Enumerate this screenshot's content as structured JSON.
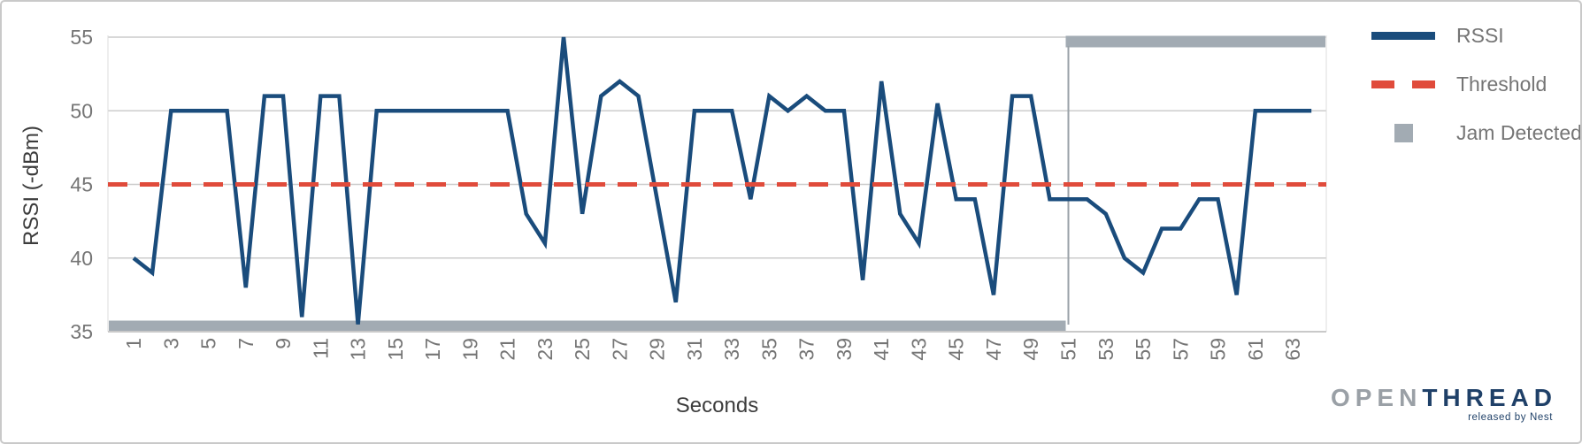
{
  "chart_data": {
    "type": "line",
    "title": "",
    "xlabel": "Seconds",
    "ylabel": "RSSI (-dBm)",
    "x_range": [
      1,
      64
    ],
    "ylim": [
      35,
      55
    ],
    "y_ticks": [
      35,
      40,
      45,
      50,
      55
    ],
    "x_tick_labels": [
      1,
      3,
      5,
      7,
      9,
      11,
      13,
      15,
      17,
      19,
      21,
      23,
      25,
      27,
      29,
      31,
      33,
      35,
      37,
      39,
      41,
      43,
      45,
      47,
      49,
      51,
      53,
      55,
      57,
      59,
      61,
      63
    ],
    "grid": true,
    "legend": {
      "position": "right",
      "items": [
        "RSSI",
        "Threshold",
        "Jam Detected"
      ]
    },
    "series": [
      {
        "name": "RSSI",
        "type": "line",
        "color": "#1a4c7c",
        "x_start": 1,
        "values": [
          40,
          39,
          50,
          50,
          50,
          50,
          38,
          51,
          51,
          36,
          51,
          51,
          35.5,
          50,
          50,
          50,
          50,
          50,
          50,
          50,
          50,
          43,
          41,
          55,
          43,
          51,
          52,
          51,
          44,
          37,
          50,
          50,
          50,
          44,
          51,
          50,
          51,
          50,
          50,
          38.5,
          52,
          43,
          41,
          50.5,
          44,
          44,
          37.5,
          51,
          51,
          44,
          44,
          44,
          43,
          40,
          39,
          42,
          42,
          44,
          44,
          37.5,
          50,
          50,
          50,
          50
        ]
      },
      {
        "name": "Threshold",
        "type": "horizontal-dashed-line",
        "color": "#e04b3b",
        "value": 45
      },
      {
        "name": "Jam Detected",
        "type": "step-band",
        "color": "#a2abb3",
        "jam_start_second": 51,
        "low_level_display_value": 35.2,
        "high_level_display_value": 54.8,
        "description": "thick gray bar along bottom (value ~35, no jam) from plot start through second 50, then jumps to top (value ~55, jam detected) from second 51 to plot end, joined by thin gray vertical connector"
      }
    ],
    "colors": {
      "rssi_line": "#1a4c7c",
      "threshold_line": "#e04b3b",
      "jam_band": "#a2abb3",
      "gridline": "#cccccc",
      "axis_baseline": "#c9c9c9",
      "tick_text": "#757575",
      "axis_title_text": "#3c3c3c",
      "connector": "#9aa2a8"
    }
  },
  "logo": {
    "open": "OPEN",
    "thread": "THREAD",
    "tagline": "released by Nest"
  }
}
